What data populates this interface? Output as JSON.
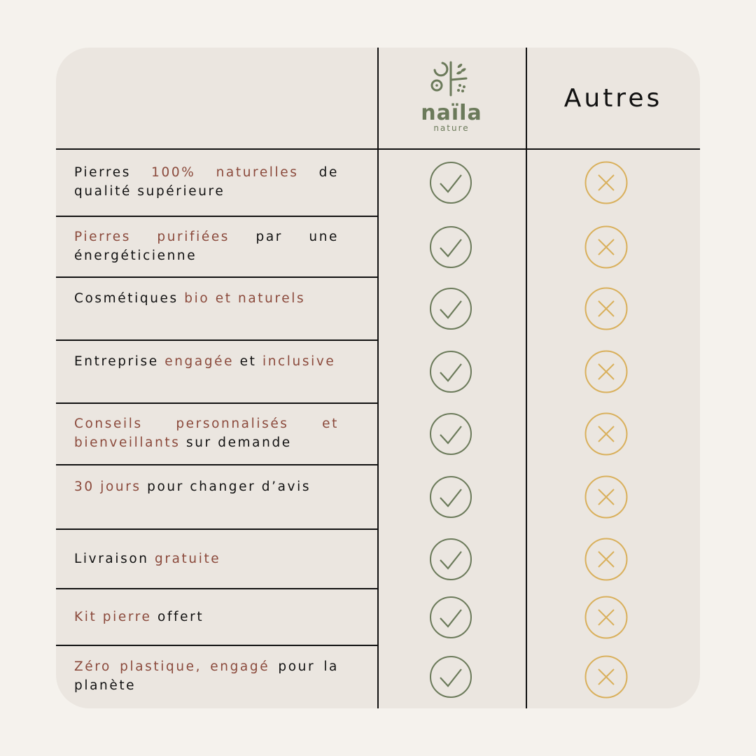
{
  "header": {
    "brand_name": "naïla",
    "brand_sub": "nature",
    "others_label": "Autres"
  },
  "colors": {
    "background": "#f5f2ed",
    "card": "#ebe6e0",
    "accent": "#8b4a3c",
    "check": "#6b7a5a",
    "cross": "#d9b05c"
  },
  "rows": [
    {
      "segments": [
        {
          "text": "Pierres ",
          "hl": false
        },
        {
          "text": "100% naturelles",
          "hl": true
        },
        {
          "text": " de qualité supérieure",
          "hl": false
        }
      ],
      "naila": "check-icon",
      "autres": "cross-icon"
    },
    {
      "segments": [
        {
          "text": "Pierres purifiées",
          "hl": true
        },
        {
          "text": " par une énergéticienne",
          "hl": false
        }
      ],
      "naila": "check-icon",
      "autres": "cross-icon"
    },
    {
      "segments": [
        {
          "text": "Cosmétiques ",
          "hl": false
        },
        {
          "text": "bio et naturels",
          "hl": true
        }
      ],
      "naila": "check-icon",
      "autres": "cross-icon"
    },
    {
      "segments": [
        {
          "text": "Entreprise ",
          "hl": false
        },
        {
          "text": "engagée",
          "hl": true
        },
        {
          "text": " et ",
          "hl": false
        },
        {
          "text": "inclusive",
          "hl": true
        }
      ],
      "naila": "check-icon",
      "autres": "cross-icon"
    },
    {
      "segments": [
        {
          "text": "Conseils personnalisés et bienveillants",
          "hl": true
        },
        {
          "text": " sur demande",
          "hl": false
        }
      ],
      "naila": "check-icon",
      "autres": "cross-icon"
    },
    {
      "segments": [
        {
          "text": "30 jours",
          "hl": true
        },
        {
          "text": " pour changer d’avis",
          "hl": false
        }
      ],
      "naila": "check-icon",
      "autres": "cross-icon"
    },
    {
      "segments": [
        {
          "text": "Livraison ",
          "hl": false
        },
        {
          "text": "gratuite",
          "hl": true
        }
      ],
      "naila": "check-icon",
      "autres": "cross-icon"
    },
    {
      "segments": [
        {
          "text": "Kit pierre",
          "hl": true
        },
        {
          "text": " offert",
          "hl": false
        }
      ],
      "naila": "check-icon",
      "autres": "cross-icon"
    },
    {
      "segments": [
        {
          "text": "Zéro plastique, engagé",
          "hl": true
        },
        {
          "text": " pour la planète",
          "hl": false
        }
      ],
      "naila": "check-icon",
      "autres": "cross-icon"
    }
  ]
}
